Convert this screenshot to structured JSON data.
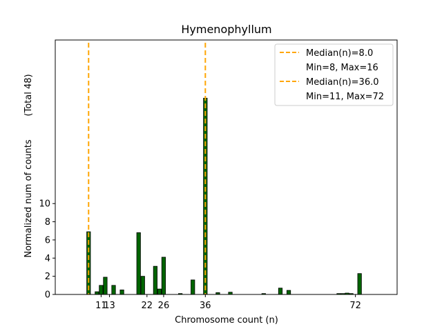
{
  "chart_data": {
    "type": "bar",
    "title": "Hymenophyllum",
    "xlabel": "Chromosome count (n)",
    "ylabel": "Normalized num of counts",
    "ylabel_secondary": "(Total 48)",
    "xlim": [
      0,
      82
    ],
    "ylim": [
      0,
      28
    ],
    "xticks": [
      11,
      13,
      22,
      26,
      36,
      72
    ],
    "yticks": [
      0,
      2,
      4,
      6,
      8,
      10
    ],
    "bar_color": "#006400",
    "bar_edge_color": "#000000",
    "median_color": "#FFA500",
    "bars": [
      {
        "x": 8,
        "y": 6.9
      },
      {
        "x": 10,
        "y": 0.3
      },
      {
        "x": 11,
        "y": 1.0
      },
      {
        "x": 12,
        "y": 1.9
      },
      {
        "x": 14,
        "y": 1.0
      },
      {
        "x": 16,
        "y": 0.5
      },
      {
        "x": 20,
        "y": 6.8
      },
      {
        "x": 21,
        "y": 2.0
      },
      {
        "x": 24,
        "y": 3.1
      },
      {
        "x": 25,
        "y": 0.6
      },
      {
        "x": 26,
        "y": 4.1
      },
      {
        "x": 30,
        "y": 0.1
      },
      {
        "x": 33,
        "y": 1.6
      },
      {
        "x": 36,
        "y": 21.6
      },
      {
        "x": 39,
        "y": 0.2
      },
      {
        "x": 42,
        "y": 0.25
      },
      {
        "x": 50,
        "y": 0.1
      },
      {
        "x": 54,
        "y": 0.7
      },
      {
        "x": 56,
        "y": 0.45
      },
      {
        "x": 68,
        "y": 0.1
      },
      {
        "x": 69,
        "y": 0.1
      },
      {
        "x": 70,
        "y": 0.15
      },
      {
        "x": 71,
        "y": 0.1
      },
      {
        "x": 73,
        "y": 2.3
      }
    ],
    "medians": [
      {
        "x": 8.0,
        "label": "Median(n)=8.0",
        "range_label": "Min=8, Max=16"
      },
      {
        "x": 36.0,
        "label": "Median(n)=36.0",
        "range_label": "Min=11, Max=72"
      }
    ],
    "legend_placement": "top-right"
  }
}
